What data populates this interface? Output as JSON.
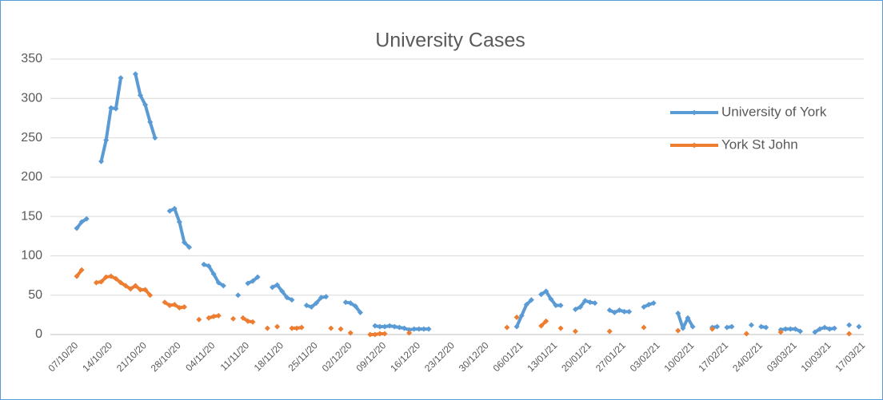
{
  "chart_data": {
    "type": "line",
    "title": "University Cases",
    "categories": [
      "07/10/20",
      null,
      null,
      null,
      null,
      null,
      null,
      "14/10/20",
      null,
      null,
      null,
      null,
      null,
      null,
      "21/10/20",
      null,
      null,
      null,
      null,
      null,
      null,
      "28/10/20",
      null,
      null,
      null,
      null,
      null,
      null,
      "04/11/20",
      null,
      null,
      null,
      null,
      null,
      null,
      "11/11/20",
      null,
      null,
      null,
      null,
      null,
      null,
      "18/11/20",
      null,
      null,
      null,
      null,
      null,
      null,
      "25/11/20",
      null,
      null,
      null,
      null,
      null,
      null,
      "02/12/20",
      null,
      null,
      null,
      null,
      null,
      null,
      "09/12/20",
      null,
      null,
      null,
      null,
      null,
      null,
      "16/12/20",
      null,
      null,
      null,
      null,
      null,
      null,
      "23/12/20",
      null,
      null,
      null,
      null,
      null,
      null,
      "30/12/20",
      null,
      null,
      null,
      null,
      null,
      null,
      "06/01/21",
      null,
      null,
      null,
      null,
      null,
      null,
      "13/01/21",
      null,
      null,
      null,
      null,
      null,
      null,
      "20/01/21",
      null,
      null,
      null,
      null,
      null,
      null,
      "27/01/21",
      null,
      null,
      null,
      null,
      null,
      null,
      "03/02/21",
      null,
      null,
      null,
      null,
      null,
      null,
      "10/02/21",
      null,
      null,
      null,
      null,
      null,
      null,
      "17/02/21",
      null,
      null,
      null,
      null,
      null,
      null,
      "24/02/21",
      null,
      null,
      null,
      null,
      null,
      null,
      "03/03/21",
      null,
      null,
      null,
      null,
      null,
      null,
      "10/03/21",
      null,
      null,
      null,
      null,
      null,
      null,
      "17/03/21"
    ],
    "series": [
      {
        "name": "University of York",
        "color": "#5b9bd5",
        "values": [
          135,
          143,
          147,
          null,
          null,
          220,
          247,
          288,
          287,
          326,
          null,
          null,
          331,
          304,
          292,
          270,
          250,
          null,
          null,
          157,
          160,
          143,
          117,
          111,
          null,
          null,
          89,
          87,
          77,
          66,
          62,
          null,
          null,
          50,
          null,
          65,
          68,
          73,
          null,
          null,
          60,
          63,
          55,
          47,
          44,
          null,
          null,
          37,
          35,
          40,
          47,
          48,
          null,
          null,
          null,
          41,
          40,
          36,
          28,
          null,
          null,
          11,
          10,
          10,
          11,
          10,
          9,
          8,
          6,
          7,
          7,
          7,
          7,
          null,
          null,
          null,
          null,
          null,
          null,
          null,
          null,
          null,
          null,
          null,
          null,
          null,
          null,
          null,
          null,
          null,
          10,
          24,
          38,
          44,
          null,
          51,
          55,
          45,
          37,
          37,
          null,
          null,
          32,
          35,
          43,
          41,
          40,
          null,
          null,
          31,
          28,
          31,
          29,
          29,
          null,
          null,
          35,
          38,
          40,
          null,
          null,
          null,
          null,
          27,
          8,
          21,
          10,
          null,
          null,
          null,
          9,
          10,
          null,
          9,
          10,
          null,
          null,
          null,
          12,
          null,
          10,
          9,
          null,
          null,
          6,
          7,
          7,
          7,
          4,
          null,
          null,
          3,
          7,
          9,
          7,
          8,
          null,
          null,
          12,
          null,
          10,
          null
        ]
      },
      {
        "name": "York St John",
        "color": "#ed7d31",
        "values": [
          74,
          82,
          null,
          null,
          66,
          67,
          73,
          74,
          71,
          66,
          62,
          58,
          62,
          57,
          57,
          50,
          null,
          null,
          41,
          37,
          38,
          34,
          35,
          null,
          null,
          19,
          null,
          21,
          23,
          24,
          null,
          null,
          20,
          null,
          21,
          17,
          16,
          null,
          null,
          8,
          null,
          10,
          null,
          null,
          8,
          8,
          9,
          null,
          null,
          null,
          null,
          null,
          8,
          null,
          7,
          null,
          2,
          null,
          null,
          null,
          0,
          0,
          1,
          1,
          null,
          null,
          null,
          null,
          2,
          null,
          null,
          null,
          null,
          null,
          null,
          null,
          null,
          null,
          null,
          null,
          null,
          null,
          null,
          null,
          null,
          null,
          null,
          null,
          9,
          null,
          22,
          null,
          null,
          null,
          null,
          11,
          17,
          null,
          null,
          8,
          null,
          null,
          4,
          null,
          null,
          null,
          null,
          null,
          null,
          4,
          null,
          null,
          null,
          null,
          null,
          null,
          9,
          null,
          null,
          null,
          null,
          null,
          null,
          5,
          null,
          null,
          null,
          null,
          null,
          null,
          7,
          null,
          null,
          null,
          null,
          null,
          null,
          1,
          null,
          null,
          null,
          null,
          null,
          null,
          3,
          null,
          null,
          null,
          null,
          null,
          null,
          null,
          null,
          null,
          null,
          null,
          null,
          null,
          1,
          null,
          null,
          null
        ]
      }
    ],
    "ylim": [
      0,
      350
    ],
    "yticks": [
      0,
      50,
      100,
      150,
      200,
      250,
      300,
      350
    ],
    "grid": true,
    "legend": "upper right"
  }
}
